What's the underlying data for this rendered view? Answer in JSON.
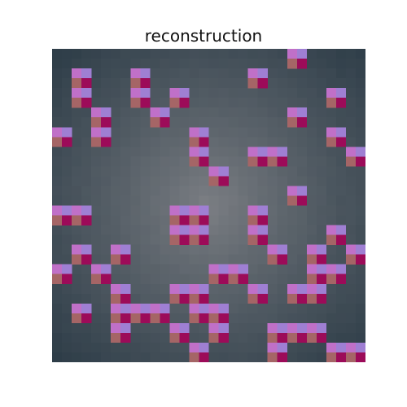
{
  "title": "reconstruction",
  "image": {
    "grid_cols": 16,
    "grid_rows": 16,
    "background_center_color": "#7c7f84",
    "background_edge_color": "#2e3d48",
    "motif_colors": {
      "top_left": "#c070c8",
      "top_right": "#9f7fd3",
      "bottom_left": "#a56566",
      "bottom_right": "#9c0b59"
    },
    "motif_cells": [
      [
        1,
        1
      ],
      [
        4,
        1
      ],
      [
        10,
        1
      ],
      [
        12,
        0
      ],
      [
        1,
        2
      ],
      [
        4,
        2
      ],
      [
        6,
        2
      ],
      [
        14,
        2
      ],
      [
        2,
        3
      ],
      [
        5,
        3
      ],
      [
        12,
        3
      ],
      [
        0,
        4
      ],
      [
        2,
        4
      ],
      [
        7,
        4
      ],
      [
        14,
        4
      ],
      [
        7,
        5
      ],
      [
        10,
        5
      ],
      [
        11,
        5
      ],
      [
        15,
        5
      ],
      [
        8,
        6
      ],
      [
        12,
        7
      ],
      [
        0,
        8
      ],
      [
        1,
        8
      ],
      [
        6,
        8
      ],
      [
        7,
        8
      ],
      [
        10,
        8
      ],
      [
        6,
        9
      ],
      [
        7,
        9
      ],
      [
        10,
        9
      ],
      [
        14,
        9
      ],
      [
        1,
        10
      ],
      [
        3,
        10
      ],
      [
        11,
        10
      ],
      [
        13,
        10
      ],
      [
        15,
        10
      ],
      [
        0,
        11
      ],
      [
        2,
        11
      ],
      [
        8,
        11
      ],
      [
        9,
        11
      ],
      [
        13,
        11
      ],
      [
        14,
        11
      ],
      [
        3,
        12
      ],
      [
        6,
        12
      ],
      [
        7,
        12
      ],
      [
        10,
        12
      ],
      [
        12,
        12
      ],
      [
        13,
        12
      ],
      [
        1,
        13
      ],
      [
        3,
        13
      ],
      [
        4,
        13
      ],
      [
        5,
        13
      ],
      [
        7,
        13
      ],
      [
        8,
        13
      ],
      [
        3,
        14
      ],
      [
        6,
        14
      ],
      [
        8,
        14
      ],
      [
        11,
        14
      ],
      [
        12,
        14
      ],
      [
        13,
        14
      ],
      [
        7,
        15
      ],
      [
        11,
        15
      ],
      [
        14,
        15
      ],
      [
        15,
        15
      ]
    ]
  }
}
